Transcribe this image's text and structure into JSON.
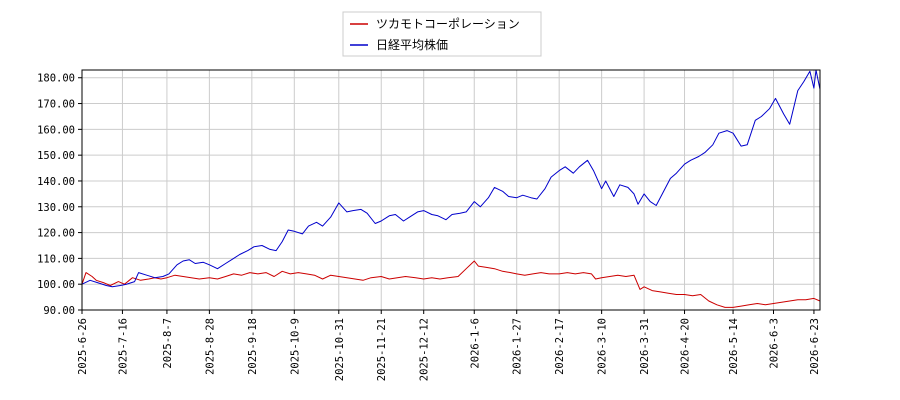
{
  "chart_data": {
    "type": "line",
    "title": "",
    "xlabel": "",
    "ylabel": "",
    "xlim": [
      "2025-06-26",
      "2026-06-26"
    ],
    "ylim": [
      90,
      183
    ],
    "grid": true,
    "legend_position": "top-center",
    "x_tick_labels": [
      "2025-6-26",
      "2025-7-16",
      "2025-8-7",
      "2025-8-28",
      "2025-9-18",
      "2025-10-9",
      "2025-10-31",
      "2025-11-21",
      "2025-12-12",
      "2026-1-6",
      "2026-1-27",
      "2026-2-17",
      "2026-3-10",
      "2026-3-31",
      "2026-4-20",
      "2026-5-14",
      "2026-6-3",
      "2026-6-23"
    ],
    "y_ticks": [
      90,
      100,
      110,
      120,
      130,
      140,
      150,
      160,
      170,
      180
    ],
    "y_tick_labels": [
      "90.00",
      "100.00",
      "110.00",
      "120.00",
      "130.00",
      "140.00",
      "150.00",
      "160.00",
      "170.00",
      "180.00"
    ],
    "series": [
      {
        "name": "ツカモトコーポレーション",
        "color": "#cc0000",
        "points": [
          [
            "2025-06-26",
            100.0
          ],
          [
            "2025-06-28",
            104.5
          ],
          [
            "2025-07-01",
            103.0
          ],
          [
            "2025-07-03",
            101.5
          ],
          [
            "2025-07-07",
            100.5
          ],
          [
            "2025-07-10",
            99.5
          ],
          [
            "2025-07-14",
            101.0
          ],
          [
            "2025-07-17",
            100.0
          ],
          [
            "2025-07-21",
            102.5
          ],
          [
            "2025-07-25",
            101.5
          ],
          [
            "2025-07-29",
            102.0
          ],
          [
            "2025-08-01",
            102.5
          ],
          [
            "2025-08-04",
            102.0
          ],
          [
            "2025-08-07",
            102.5
          ],
          [
            "2025-08-11",
            103.5
          ],
          [
            "2025-08-15",
            103.0
          ],
          [
            "2025-08-19",
            102.5
          ],
          [
            "2025-08-23",
            102.0
          ],
          [
            "2025-08-28",
            102.5
          ],
          [
            "2025-09-01",
            102.0
          ],
          [
            "2025-09-05",
            103.0
          ],
          [
            "2025-09-09",
            104.0
          ],
          [
            "2025-09-13",
            103.5
          ],
          [
            "2025-09-17",
            104.5
          ],
          [
            "2025-09-21",
            104.0
          ],
          [
            "2025-09-25",
            104.5
          ],
          [
            "2025-09-29",
            103.0
          ],
          [
            "2025-10-03",
            105.0
          ],
          [
            "2025-10-07",
            104.0
          ],
          [
            "2025-10-11",
            104.5
          ],
          [
            "2025-10-15",
            104.0
          ],
          [
            "2025-10-19",
            103.5
          ],
          [
            "2025-10-23",
            102.0
          ],
          [
            "2025-10-27",
            103.5
          ],
          [
            "2025-10-31",
            103.0
          ],
          [
            "2025-11-04",
            102.5
          ],
          [
            "2025-11-08",
            102.0
          ],
          [
            "2025-11-12",
            101.5
          ],
          [
            "2025-11-16",
            102.5
          ],
          [
            "2025-11-21",
            103.0
          ],
          [
            "2025-11-25",
            102.0
          ],
          [
            "2025-11-29",
            102.5
          ],
          [
            "2025-12-03",
            103.0
          ],
          [
            "2025-12-08",
            102.5
          ],
          [
            "2025-12-12",
            102.0
          ],
          [
            "2025-12-16",
            102.5
          ],
          [
            "2025-12-20",
            102.0
          ],
          [
            "2025-12-24",
            102.5
          ],
          [
            "2025-12-29",
            103.0
          ],
          [
            "2026-01-02",
            106.0
          ],
          [
            "2026-01-06",
            109.0
          ],
          [
            "2026-01-08",
            107.0
          ],
          [
            "2026-01-12",
            106.5
          ],
          [
            "2026-01-16",
            106.0
          ],
          [
            "2026-01-20",
            105.0
          ],
          [
            "2026-01-24",
            104.5
          ],
          [
            "2026-01-27",
            104.0
          ],
          [
            "2026-01-31",
            103.5
          ],
          [
            "2026-02-04",
            104.0
          ],
          [
            "2026-02-08",
            104.5
          ],
          [
            "2026-02-12",
            104.0
          ],
          [
            "2026-02-17",
            104.0
          ],
          [
            "2026-02-21",
            104.5
          ],
          [
            "2026-02-25",
            104.0
          ],
          [
            "2026-03-01",
            104.5
          ],
          [
            "2026-03-05",
            104.0
          ],
          [
            "2026-03-07",
            102.0
          ],
          [
            "2026-03-10",
            102.5
          ],
          [
            "2026-03-14",
            103.0
          ],
          [
            "2026-03-18",
            103.5
          ],
          [
            "2026-03-22",
            103.0
          ],
          [
            "2026-03-26",
            103.5
          ],
          [
            "2026-03-29",
            98.0
          ],
          [
            "2026-03-31",
            99.0
          ],
          [
            "2026-04-04",
            97.5
          ],
          [
            "2026-04-08",
            97.0
          ],
          [
            "2026-04-12",
            96.5
          ],
          [
            "2026-04-16",
            96.0
          ],
          [
            "2026-04-20",
            96.0
          ],
          [
            "2026-04-24",
            95.5
          ],
          [
            "2026-04-28",
            96.0
          ],
          [
            "2026-05-02",
            93.5
          ],
          [
            "2026-05-06",
            92.0
          ],
          [
            "2026-05-10",
            91.0
          ],
          [
            "2026-05-14",
            91.0
          ],
          [
            "2026-05-18",
            91.5
          ],
          [
            "2026-05-22",
            92.0
          ],
          [
            "2026-05-26",
            92.5
          ],
          [
            "2026-05-30",
            92.0
          ],
          [
            "2026-06-03",
            92.5
          ],
          [
            "2026-06-07",
            93.0
          ],
          [
            "2026-06-11",
            93.5
          ],
          [
            "2026-06-15",
            94.0
          ],
          [
            "2026-06-19",
            94.0
          ],
          [
            "2026-06-23",
            94.5
          ],
          [
            "2026-06-26",
            93.5
          ]
        ]
      },
      {
        "name": "日経平均株価",
        "color": "#0000cc",
        "points": [
          [
            "2025-06-26",
            100.0
          ],
          [
            "2025-06-30",
            101.5
          ],
          [
            "2025-07-04",
            100.5
          ],
          [
            "2025-07-08",
            99.5
          ],
          [
            "2025-07-11",
            99.0
          ],
          [
            "2025-07-15",
            99.5
          ],
          [
            "2025-07-18",
            100.0
          ],
          [
            "2025-07-22",
            101.0
          ],
          [
            "2025-07-24",
            104.5
          ],
          [
            "2025-07-28",
            103.5
          ],
          [
            "2025-08-01",
            102.5
          ],
          [
            "2025-08-05",
            103.0
          ],
          [
            "2025-08-08",
            104.0
          ],
          [
            "2025-08-12",
            107.5
          ],
          [
            "2025-08-15",
            109.0
          ],
          [
            "2025-08-18",
            109.5
          ],
          [
            "2025-08-21",
            108.0
          ],
          [
            "2025-08-25",
            108.5
          ],
          [
            "2025-08-28",
            107.5
          ],
          [
            "2025-09-01",
            106.0
          ],
          [
            "2025-09-05",
            108.0
          ],
          [
            "2025-09-09",
            110.0
          ],
          [
            "2025-09-12",
            111.5
          ],
          [
            "2025-09-16",
            113.0
          ],
          [
            "2025-09-19",
            114.5
          ],
          [
            "2025-09-23",
            115.0
          ],
          [
            "2025-09-27",
            113.5
          ],
          [
            "2025-09-30",
            113.0
          ],
          [
            "2025-10-03",
            116.5
          ],
          [
            "2025-10-06",
            121.0
          ],
          [
            "2025-10-09",
            120.5
          ],
          [
            "2025-10-13",
            119.5
          ],
          [
            "2025-10-16",
            122.5
          ],
          [
            "2025-10-20",
            124.0
          ],
          [
            "2025-10-23",
            122.5
          ],
          [
            "2025-10-27",
            126.0
          ],
          [
            "2025-10-31",
            131.5
          ],
          [
            "2025-11-04",
            128.0
          ],
          [
            "2025-11-07",
            128.5
          ],
          [
            "2025-11-11",
            129.0
          ],
          [
            "2025-11-14",
            127.5
          ],
          [
            "2025-11-18",
            123.5
          ],
          [
            "2025-11-21",
            124.5
          ],
          [
            "2025-11-25",
            126.5
          ],
          [
            "2025-11-28",
            127.0
          ],
          [
            "2025-12-02",
            124.5
          ],
          [
            "2025-12-05",
            126.0
          ],
          [
            "2025-12-09",
            128.0
          ],
          [
            "2025-12-12",
            128.5
          ],
          [
            "2025-12-16",
            127.0
          ],
          [
            "2025-12-19",
            126.5
          ],
          [
            "2025-12-23",
            125.0
          ],
          [
            "2025-12-26",
            127.0
          ],
          [
            "2025-12-30",
            127.5
          ],
          [
            "2026-01-02",
            128.0
          ],
          [
            "2026-01-06",
            132.0
          ],
          [
            "2026-01-09",
            130.0
          ],
          [
            "2026-01-13",
            133.5
          ],
          [
            "2026-01-16",
            137.5
          ],
          [
            "2026-01-20",
            136.0
          ],
          [
            "2026-01-23",
            134.0
          ],
          [
            "2026-01-27",
            133.5
          ],
          [
            "2026-01-30",
            134.5
          ],
          [
            "2026-02-03",
            133.5
          ],
          [
            "2026-02-06",
            133.0
          ],
          [
            "2026-02-10",
            137.0
          ],
          [
            "2026-02-13",
            141.5
          ],
          [
            "2026-02-17",
            144.0
          ],
          [
            "2026-02-20",
            145.5
          ],
          [
            "2026-02-24",
            143.0
          ],
          [
            "2026-02-27",
            145.5
          ],
          [
            "2026-03-03",
            148.0
          ],
          [
            "2026-03-06",
            144.0
          ],
          [
            "2026-03-10",
            137.0
          ],
          [
            "2026-03-12",
            140.0
          ],
          [
            "2026-03-16",
            134.0
          ],
          [
            "2026-03-19",
            138.5
          ],
          [
            "2026-03-23",
            137.5
          ],
          [
            "2026-03-26",
            135.0
          ],
          [
            "2026-03-28",
            131.0
          ],
          [
            "2026-03-31",
            135.0
          ],
          [
            "2026-04-03",
            132.0
          ],
          [
            "2026-04-06",
            130.5
          ],
          [
            "2026-04-09",
            135.0
          ],
          [
            "2026-04-13",
            141.0
          ],
          [
            "2026-04-16",
            143.0
          ],
          [
            "2026-04-20",
            146.5
          ],
          [
            "2026-04-23",
            148.0
          ],
          [
            "2026-04-27",
            149.5
          ],
          [
            "2026-04-30",
            151.0
          ],
          [
            "2026-05-04",
            154.0
          ],
          [
            "2026-05-07",
            158.5
          ],
          [
            "2026-05-11",
            159.5
          ],
          [
            "2026-05-14",
            158.5
          ],
          [
            "2026-05-18",
            153.5
          ],
          [
            "2026-05-21",
            154.0
          ],
          [
            "2026-05-25",
            163.5
          ],
          [
            "2026-05-28",
            165.0
          ],
          [
            "2026-06-01",
            168.0
          ],
          [
            "2026-06-04",
            172.0
          ],
          [
            "2026-06-08",
            166.0
          ],
          [
            "2026-06-11",
            162.0
          ],
          [
            "2026-06-15",
            175.0
          ],
          [
            "2026-06-18",
            178.5
          ],
          [
            "2026-06-21",
            182.5
          ],
          [
            "2026-06-23",
            176.0
          ],
          [
            "2026-06-24",
            183.0
          ],
          [
            "2026-06-26",
            175.5
          ]
        ]
      }
    ]
  }
}
